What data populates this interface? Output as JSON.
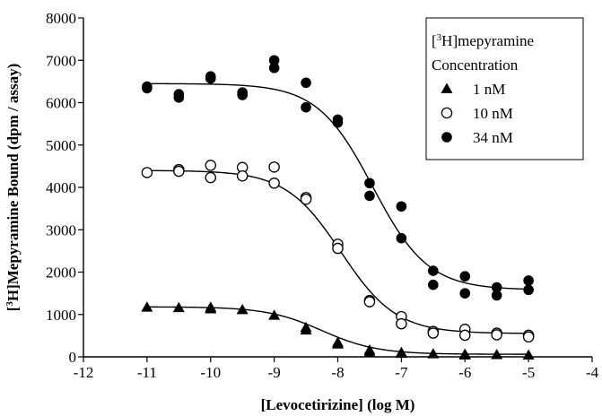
{
  "chart_data": {
    "type": "scatter",
    "xlabel": "[Levocetirizine] (log M)",
    "ylabel_sup": "3",
    "ylabel_prefix": "[",
    "ylabel_rest": "H]Mepyramine Bound (dpm / assay)",
    "xlim": [
      -12,
      -4
    ],
    "ylim": [
      0,
      8000
    ],
    "xticks": [
      -12,
      -11,
      -10,
      -9,
      -8,
      -7,
      -6,
      -5,
      -4
    ],
    "yticks": [
      0,
      1000,
      2000,
      3000,
      4000,
      5000,
      6000,
      7000,
      8000
    ],
    "grid": false,
    "legend_position": "top-right",
    "legend": {
      "title_prefix": "[",
      "title_sup": "3",
      "title_rest": "H]mepyramine",
      "title_line2": "Concentration"
    },
    "series": [
      {
        "name": "1 nM",
        "marker": "triangle",
        "fit": {
          "top": 1180,
          "bottom": 60,
          "log_ic50": -8.25,
          "hill": 1.0
        },
        "points": [
          [
            -11,
            1170
          ],
          [
            -10.5,
            1160
          ],
          [
            -10,
            1170
          ],
          [
            -10,
            1130
          ],
          [
            -9.5,
            1110
          ],
          [
            -9,
            980
          ],
          [
            -8.5,
            690
          ],
          [
            -8.5,
            630
          ],
          [
            -8,
            340
          ],
          [
            -8,
            300
          ],
          [
            -7.5,
            160
          ],
          [
            -7.5,
            110
          ],
          [
            -7,
            100
          ],
          [
            -7,
            80
          ],
          [
            -6.5,
            70
          ],
          [
            -6,
            60
          ],
          [
            -6,
            40
          ],
          [
            -5.5,
            50
          ],
          [
            -5,
            40
          ]
        ]
      },
      {
        "name": "10 nM",
        "marker": "open-circle",
        "fit": {
          "top": 4400,
          "bottom": 550,
          "log_ic50": -7.95,
          "hill": 1.0
        },
        "points": [
          [
            -11,
            4350
          ],
          [
            -10.5,
            4420
          ],
          [
            -10.5,
            4380
          ],
          [
            -10,
            4520
          ],
          [
            -10,
            4230
          ],
          [
            -9.5,
            4470
          ],
          [
            -9.5,
            4270
          ],
          [
            -9,
            4480
          ],
          [
            -9,
            4100
          ],
          [
            -8.5,
            3760
          ],
          [
            -8.5,
            3720
          ],
          [
            -8,
            2660
          ],
          [
            -8,
            2560
          ],
          [
            -7.5,
            1330
          ],
          [
            -7.5,
            1300
          ],
          [
            -7,
            950
          ],
          [
            -7,
            780
          ],
          [
            -6.5,
            600
          ],
          [
            -6.5,
            560
          ],
          [
            -6,
            650
          ],
          [
            -6,
            510
          ],
          [
            -5.5,
            560
          ],
          [
            -5.5,
            520
          ],
          [
            -5,
            510
          ],
          [
            -5,
            470
          ]
        ]
      },
      {
        "name": "34 nM",
        "marker": "filled-circle",
        "fit": {
          "top": 6450,
          "bottom": 1580,
          "log_ic50": -7.45,
          "hill": 1.0
        },
        "points": [
          [
            -11,
            6380
          ],
          [
            -11,
            6340
          ],
          [
            -10.5,
            6200
          ],
          [
            -10.5,
            6120
          ],
          [
            -10,
            6620
          ],
          [
            -10,
            6570
          ],
          [
            -9.5,
            6240
          ],
          [
            -9.5,
            6180
          ],
          [
            -9,
            7000
          ],
          [
            -9,
            6820
          ],
          [
            -8.5,
            6470
          ],
          [
            -8.5,
            5890
          ],
          [
            -8,
            5600
          ],
          [
            -8,
            5530
          ],
          [
            -7.5,
            4100
          ],
          [
            -7.5,
            3800
          ],
          [
            -7,
            3550
          ],
          [
            -7,
            2800
          ],
          [
            -6.5,
            2030
          ],
          [
            -6.5,
            1700
          ],
          [
            -6,
            1900
          ],
          [
            -6,
            1500
          ],
          [
            -5.5,
            1640
          ],
          [
            -5.5,
            1450
          ],
          [
            -5,
            1800
          ],
          [
            -5,
            1580
          ]
        ]
      }
    ]
  }
}
